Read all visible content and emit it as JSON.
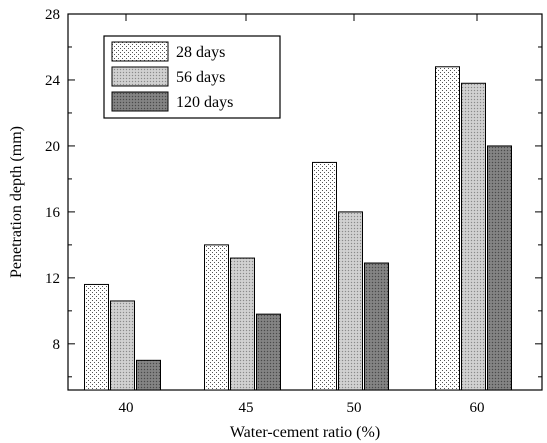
{
  "chart_data": {
    "type": "bar",
    "categories": [
      "40",
      "45",
      "50",
      "60"
    ],
    "series": [
      {
        "name": "28 days",
        "values": [
          11.6,
          14.0,
          19.0,
          24.8
        ],
        "pattern": "dots",
        "color": "#ffffff"
      },
      {
        "name": "56 days",
        "values": [
          10.6,
          13.2,
          16.0,
          23.8
        ],
        "pattern": "fine-grey",
        "color": "#c8c8c8"
      },
      {
        "name": "120 days",
        "values": [
          7.0,
          9.8,
          12.9,
          20.0
        ],
        "pattern": "dark-grey",
        "color": "#7f7f7f"
      }
    ],
    "xlabel": "Water-cement ratio (%)",
    "ylabel": "Penetration depth (mm)",
    "ylim": [
      5.2,
      28
    ],
    "yticks": [
      8,
      12,
      16,
      20,
      24,
      28
    ],
    "grid": false,
    "legend_position": "top-left"
  }
}
